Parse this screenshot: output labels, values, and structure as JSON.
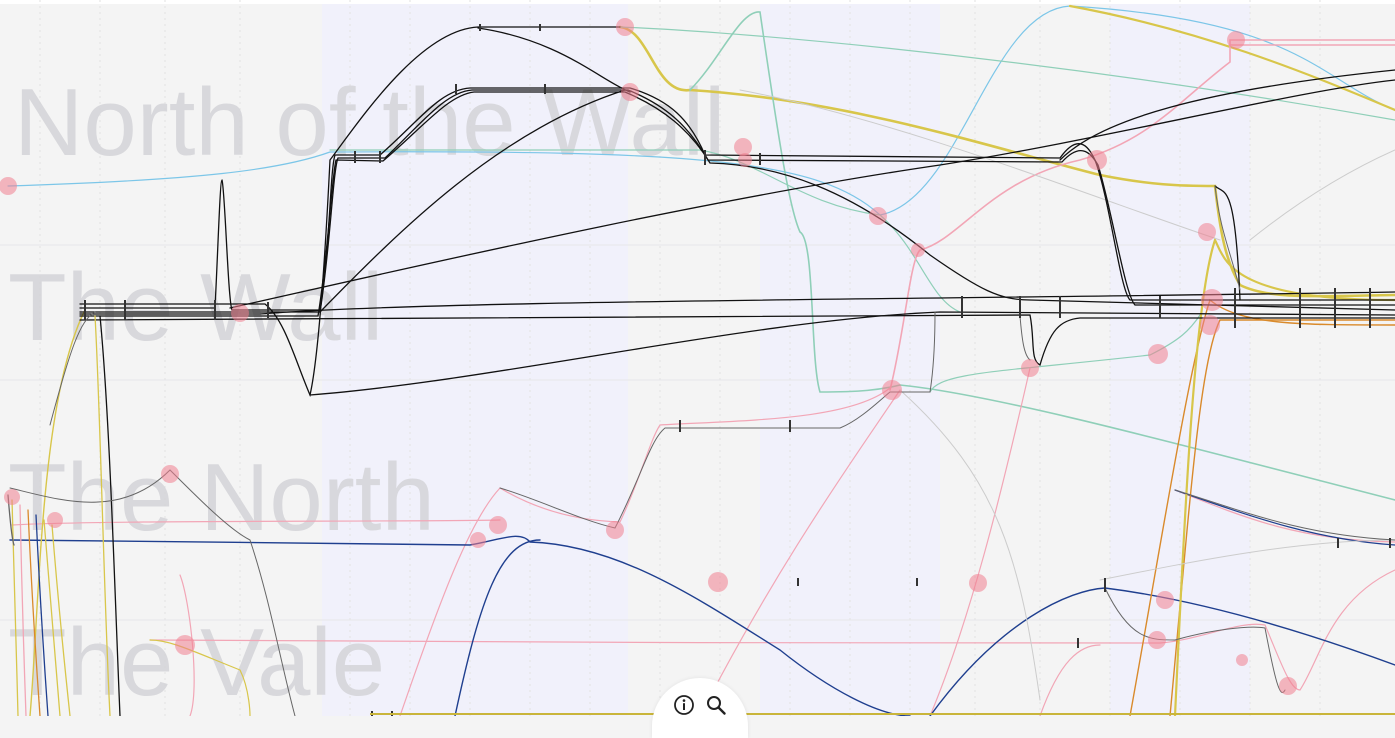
{
  "regions": [
    {
      "label": "North of the Wall"
    },
    {
      "label": "The Wall"
    },
    {
      "label": "The North"
    },
    {
      "label": "The Vale"
    }
  ],
  "controls": {
    "info_icon": "info-icon",
    "search_icon": "search-icon"
  },
  "colors": {
    "band_light": "#f1f1fb",
    "band_grey": "#f4f4f4",
    "event_marker": "#f08090",
    "line_black": "#111111",
    "line_teal": "#8fcfb8",
    "line_pink": "#f2a6b6",
    "line_yellow": "#d8c64a",
    "line_navy": "#1f3f8f",
    "line_sky": "#7cc6e8",
    "line_orange": "#d98a2b",
    "line_grey": "#888888"
  }
}
